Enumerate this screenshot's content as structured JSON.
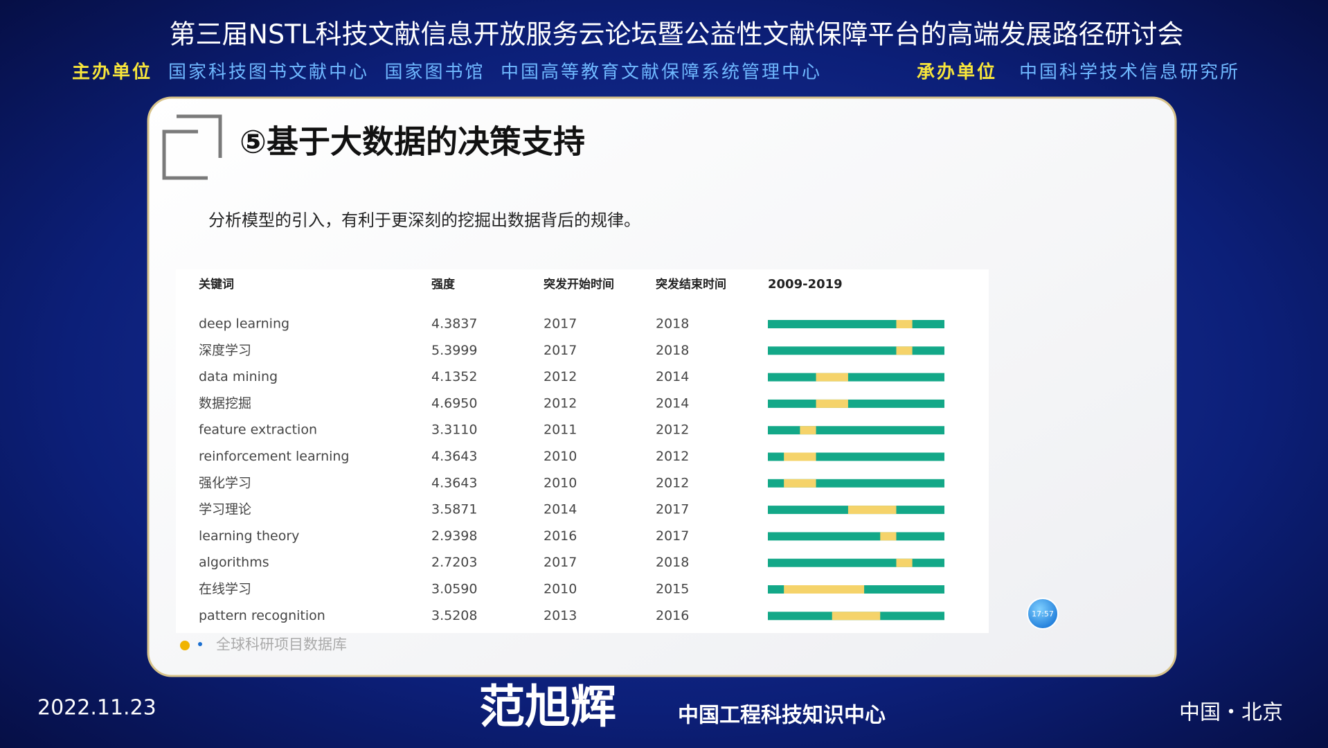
{
  "header": {
    "title": "第三届NSTL科技文献信息开放服务云论坛暨公益性文献保障平台的高端发展路径研讨会",
    "host_label": "主办单位",
    "hosts": "国家科技图书文献中心  国家图书馆  中国高等教育文献保障系统管理中心",
    "organizer_label": "承办单位",
    "organizer": "中国科学技术信息研究所"
  },
  "slide": {
    "title": "⑤基于大数据的决策支持",
    "subtitle": "分析模型的引入，有利于更深刻的挖掘出数据背后的规律。",
    "table": {
      "columns": [
        "关键词",
        "强度",
        "突发开始时间",
        "突发结束时间",
        "2009-2019"
      ],
      "range": [
        2009,
        2019
      ],
      "rows": [
        [
          "deep learning",
          "4.3837",
          2017,
          2018
        ],
        [
          "深度学习",
          "5.3999",
          2017,
          2018
        ],
        [
          "data mining",
          "4.1352",
          2012,
          2014
        ],
        [
          "数据挖掘",
          "4.6950",
          2012,
          2014
        ],
        [
          "feature extraction",
          "3.3110",
          2011,
          2012
        ],
        [
          "reinforcement learning",
          "4.3643",
          2010,
          2012
        ],
        [
          "强化学习",
          "4.3643",
          2010,
          2012
        ],
        [
          "学习理论",
          "3.5871",
          2014,
          2017
        ],
        [
          "learning theory",
          "2.9398",
          2016,
          2017
        ],
        [
          "algorithms",
          "2.7203",
          2017,
          2018
        ],
        [
          "在线学习",
          "3.0590",
          2010,
          2015
        ],
        [
          "pattern recognition",
          "3.5208",
          2013,
          2016
        ]
      ],
      "base_color": "#13a888",
      "burst_color": "#f5d36a"
    },
    "source": "全球科研项目数据库",
    "clock": "17:57"
  },
  "footer": {
    "date": "2022.11.23",
    "speaker": "范旭辉",
    "institution": "中国工程科技知识中心",
    "location": "中国・北京"
  }
}
